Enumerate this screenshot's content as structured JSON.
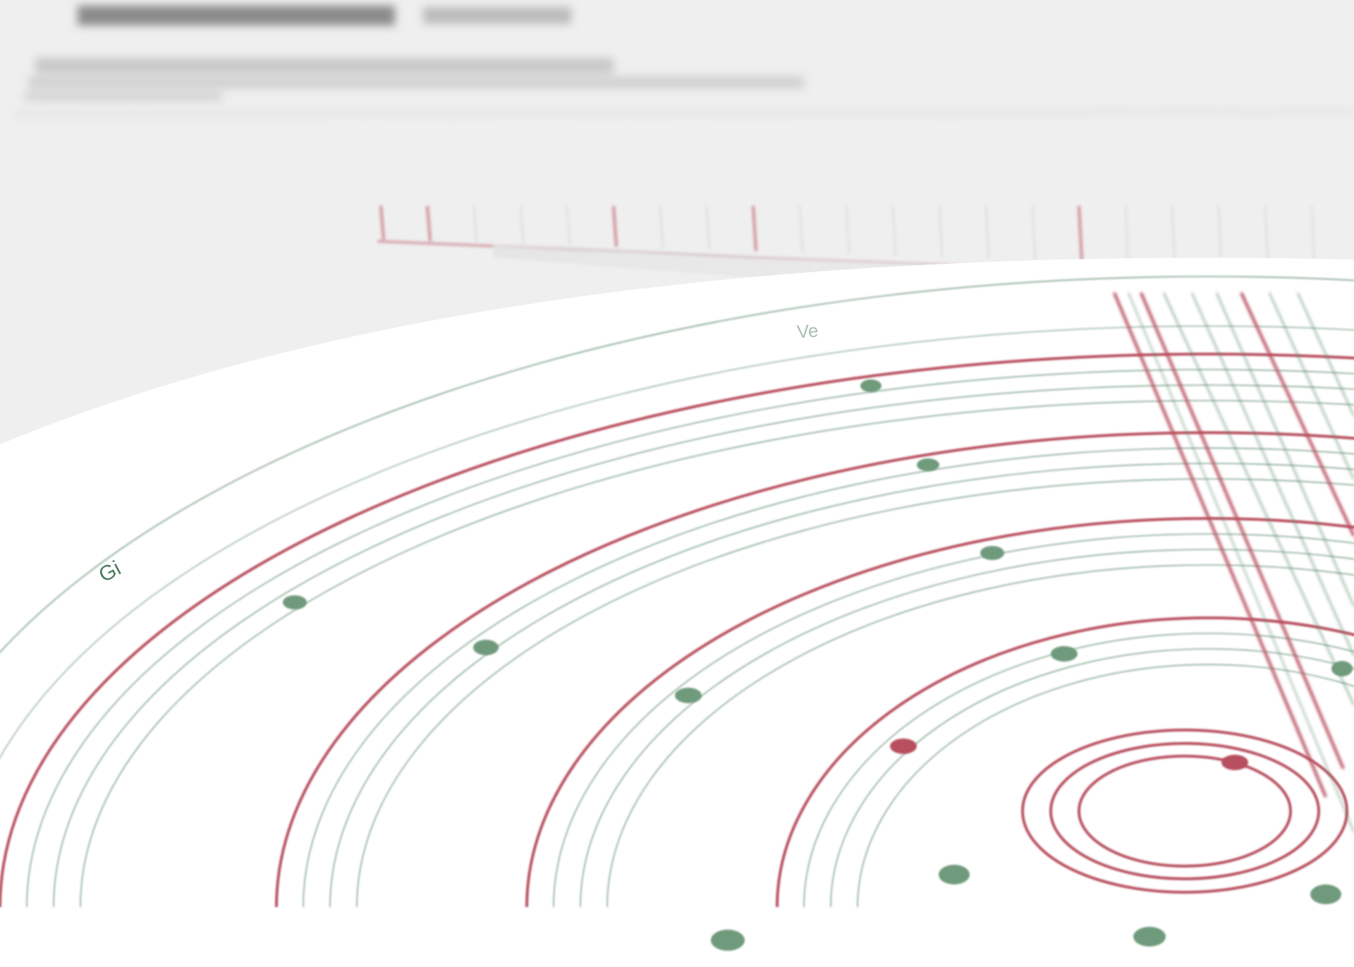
{
  "diagram": {
    "ring_labels": {
      "outer_left": "Gi",
      "outer_top": "Ve"
    },
    "colors": {
      "background": "#efefef",
      "paper": "#ffffff",
      "red_line": "#b8505e",
      "green_line": "#5c8a6c",
      "green_dot": "#6f9a7c",
      "red_dot": "#b8505e",
      "header_text": "#555555"
    }
  }
}
